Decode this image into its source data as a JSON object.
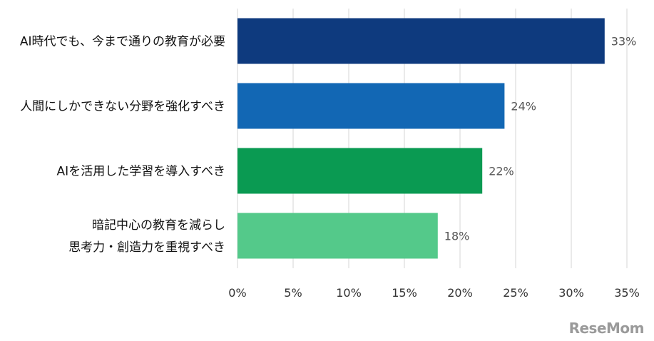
{
  "chart_data": {
    "type": "bar",
    "orientation": "horizontal",
    "categories": [
      [
        "AI時代でも、今まで通りの教育が必要"
      ],
      [
        "人間にしかできない分野を強化すべき"
      ],
      [
        "AIを活用した学習を導入すべき"
      ],
      [
        "暗記中心の教育を減らし",
        "思考力・創造力を重視すべき"
      ]
    ],
    "values": [
      33,
      24,
      22,
      18
    ],
    "value_labels": [
      "33%",
      "24%",
      "22%",
      "18%"
    ],
    "bar_colors": [
      "#0e3a7e",
      "#1267b4",
      "#0a9a52",
      "#54c98a"
    ],
    "xlim": [
      0,
      35
    ],
    "xticks": [
      0,
      5,
      10,
      15,
      20,
      25,
      30,
      35
    ],
    "xtick_labels": [
      "0%",
      "5%",
      "10%",
      "15%",
      "20%",
      "25%",
      "30%",
      "35%"
    ],
    "grid": "vertical",
    "title": "",
    "xlabel": "",
    "ylabel": ""
  },
  "logo_text": "ReseMom"
}
